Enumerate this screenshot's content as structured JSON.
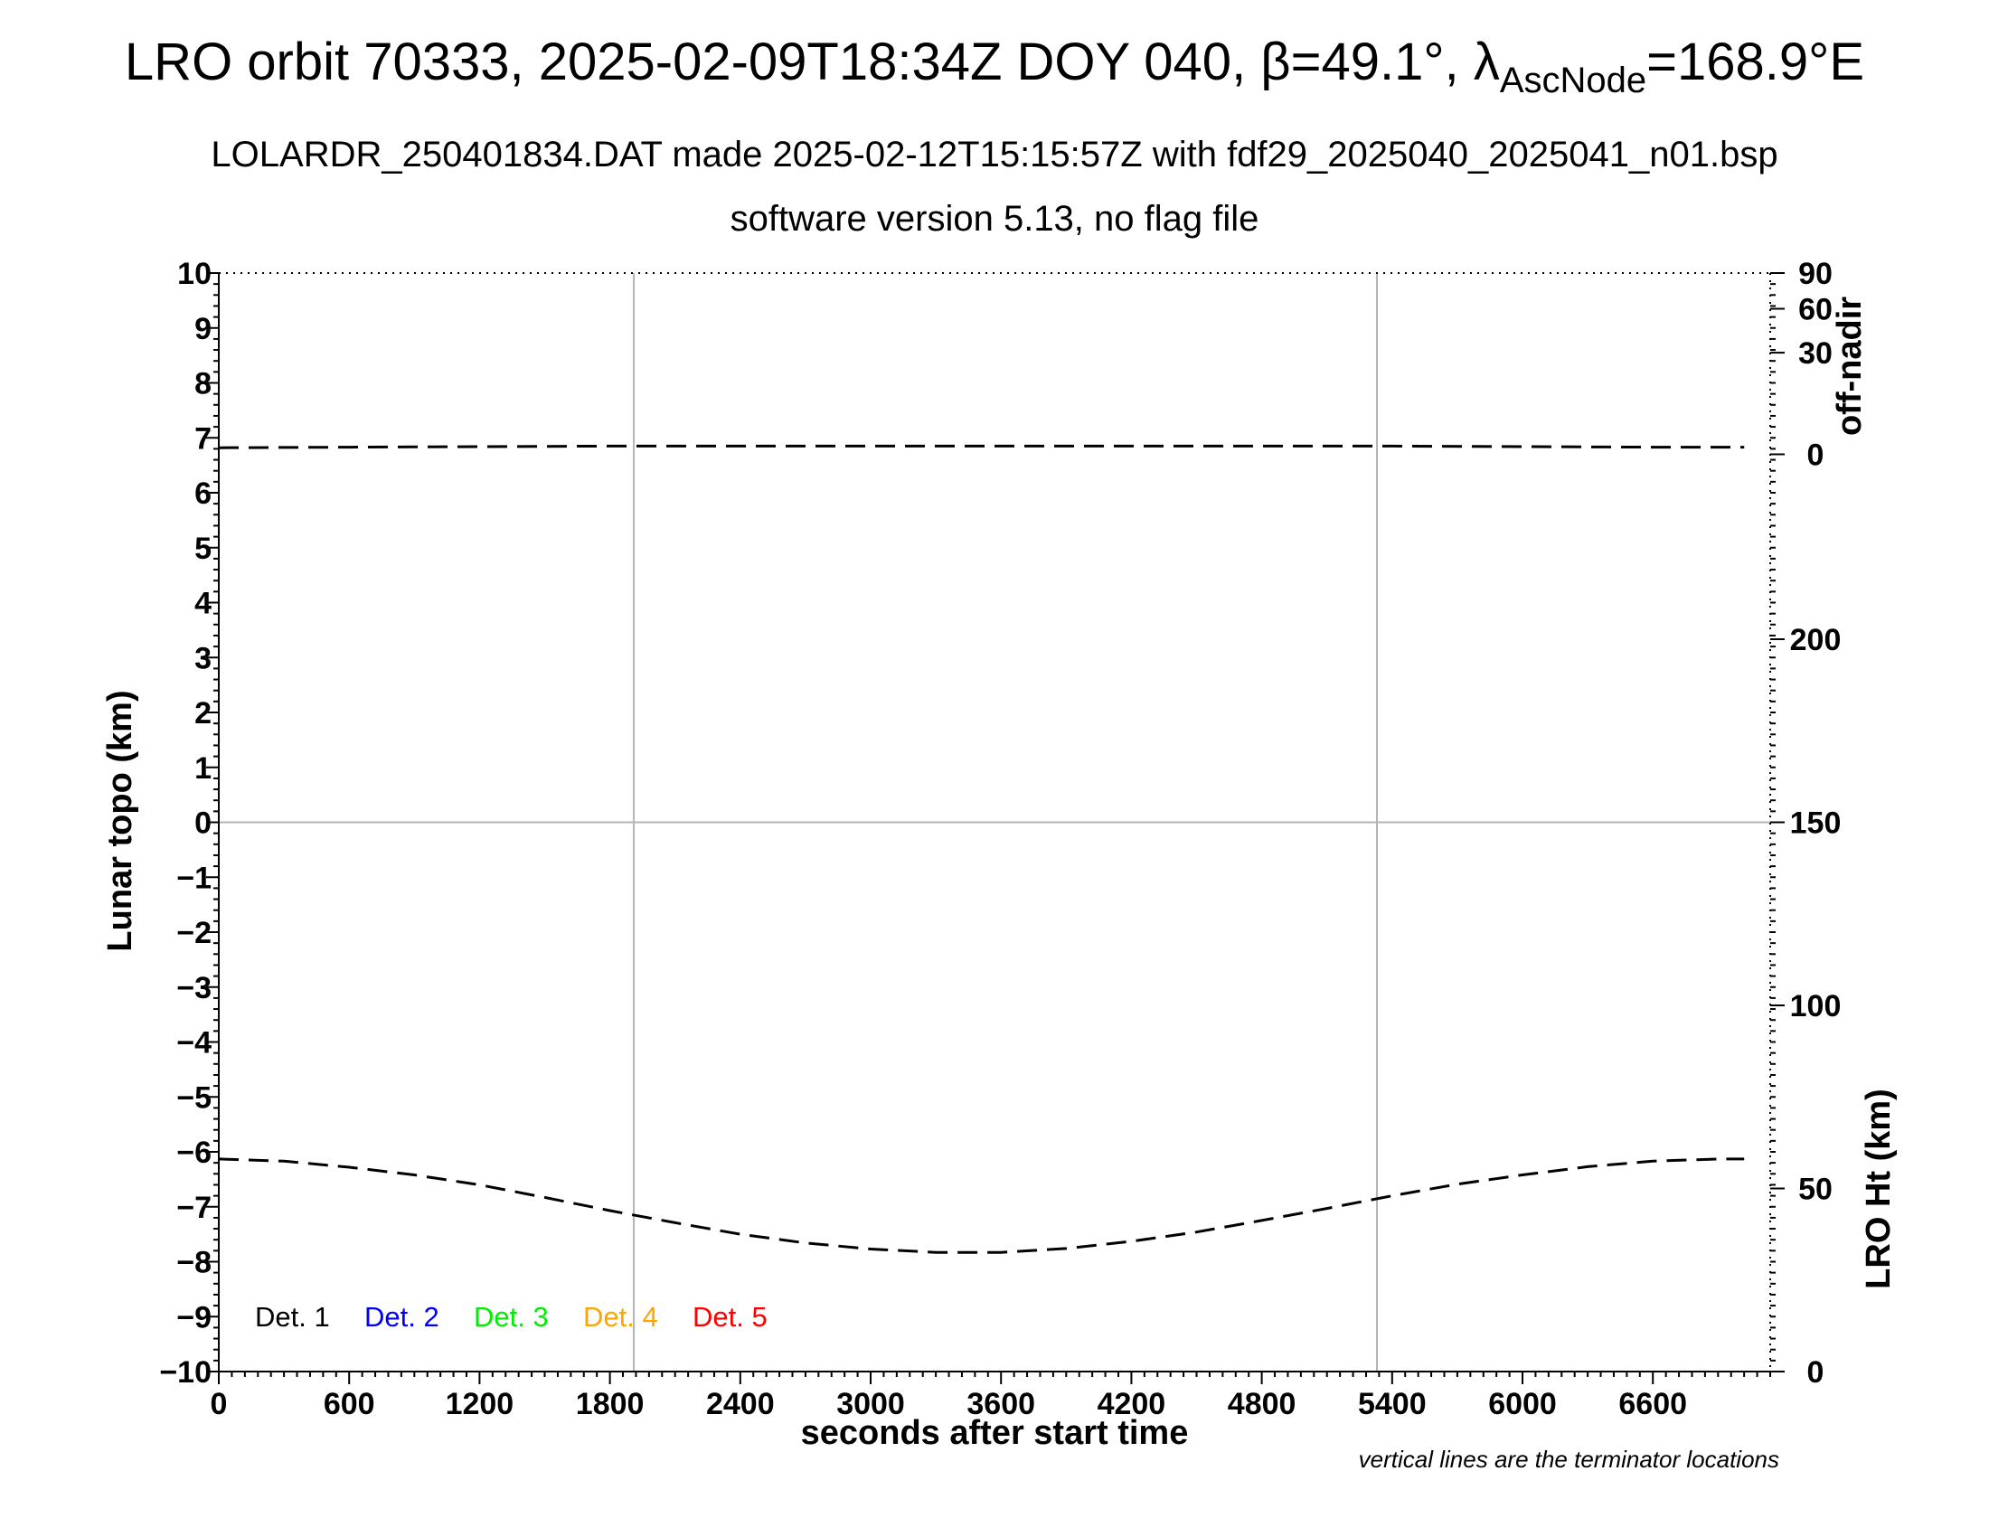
{
  "chart_data": {
    "type": "line",
    "title": {
      "prefix": "LRO orbit 70333, 2025-02-09T18:34Z DOY 040, ",
      "beta": "β=49.1°, ",
      "lambda": "λ",
      "lambda_sub": "AscNode",
      "suffix": "=168.9°E"
    },
    "subtitle_1": "LOLARDR_250401834.DAT made 2025-02-12T15:15:57Z with fdf29_2025040_2025041_n01.bsp",
    "subtitle_2": "software version 5.13, no flag file",
    "xlabel": "seconds after start time",
    "ylabel": "Lunar topo (km)",
    "right_upper_label": "off-nadir",
    "right_lower_label": "LRO Ht (km)",
    "footnote": "vertical lines are the terminator locations",
    "xlim": [
      0,
      7140
    ],
    "ylim": [
      -10,
      10
    ],
    "x_ticks": [
      0,
      600,
      1200,
      1800,
      2400,
      3000,
      3600,
      4200,
      4800,
      5400,
      6000,
      6600
    ],
    "y_ticks": [
      10,
      9,
      8,
      7,
      6,
      5,
      4,
      3,
      2,
      1,
      0,
      -1,
      -2,
      -3,
      -4,
      -5,
      -6,
      -7,
      -8,
      -9,
      -10
    ],
    "y_tick_labels": [
      "10",
      "9",
      "8",
      "7",
      "6",
      "5",
      "4",
      "3",
      "2",
      "1",
      "0",
      "−1",
      "−2",
      "−3",
      "−4",
      "−5",
      "−6",
      "−7",
      "−8",
      "−9",
      "−10"
    ],
    "off_nadir_ticks": [
      {
        "label": "90",
        "topo": 10.0
      },
      {
        "label": "60",
        "topo": 9.35
      },
      {
        "label": "30",
        "topo": 8.55
      },
      {
        "label": "0",
        "topo": 6.7
      }
    ],
    "lro_ht_ticks": [
      {
        "label": "200",
        "value": 200
      },
      {
        "label": "150",
        "value": 150
      },
      {
        "label": "100",
        "value": 100
      },
      {
        "label": "50",
        "value": 50
      },
      {
        "label": "0",
        "value": 0
      }
    ],
    "lro_ht_range": [
      0,
      300
    ],
    "terminator_x": [
      1910,
      5330
    ],
    "legend": [
      {
        "label": "Det. 1",
        "color": "#000000"
      },
      {
        "label": "Det. 2",
        "color": "#0000ff"
      },
      {
        "label": "Det. 3",
        "color": "#00ee00"
      },
      {
        "label": "Det. 4",
        "color": "#ffa500"
      },
      {
        "label": "Det. 5",
        "color": "#ff0000"
      }
    ],
    "series": [
      {
        "x": [
          0,
          600,
          1200,
          1800,
          2400,
          3000,
          3300,
          3600,
          4200,
          4800,
          5400,
          6000,
          6600,
          7020
        ],
        "values": [
          6.82,
          6.83,
          6.84,
          6.85,
          6.85,
          6.85,
          6.85,
          6.85,
          6.85,
          6.85,
          6.85,
          6.84,
          6.83,
          6.83
        ],
        "color": "#000000",
        "dash": "long"
      },
      {
        "x": [
          0,
          300,
          600,
          900,
          1200,
          1500,
          1800,
          2100,
          2400,
          2700,
          3000,
          3300,
          3600,
          3900,
          4200,
          4500,
          4800,
          5100,
          5400,
          5700,
          6000,
          6300,
          6600,
          6900,
          7020
        ],
        "values": [
          -6.13,
          -6.17,
          -6.28,
          -6.42,
          -6.6,
          -6.83,
          -7.07,
          -7.29,
          -7.5,
          -7.66,
          -7.77,
          -7.83,
          -7.83,
          -7.76,
          -7.63,
          -7.46,
          -7.25,
          -7.03,
          -6.8,
          -6.59,
          -6.42,
          -6.27,
          -6.17,
          -6.13,
          -6.13
        ],
        "color": "#000000",
        "dash": "long"
      }
    ]
  }
}
